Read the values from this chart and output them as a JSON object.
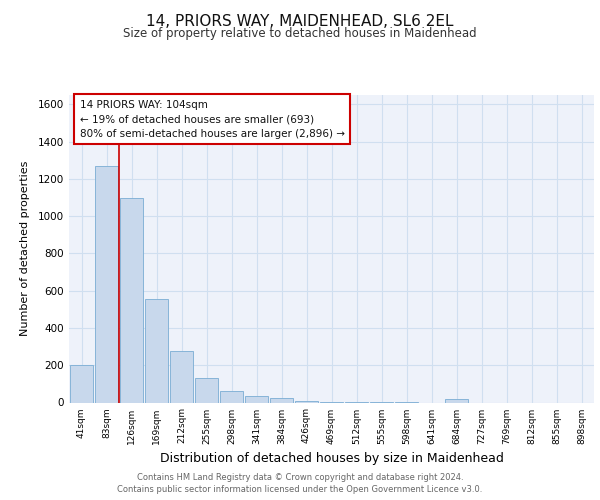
{
  "title": "14, PRIORS WAY, MAIDENHEAD, SL6 2EL",
  "subtitle": "Size of property relative to detached houses in Maidenhead",
  "xlabel": "Distribution of detached houses by size in Maidenhead",
  "ylabel": "Number of detached properties",
  "footnote1": "Contains HM Land Registry data © Crown copyright and database right 2024.",
  "footnote2": "Contains public sector information licensed under the Open Government Licence v3.0.",
  "annotation_line1": "14 PRIORS WAY: 104sqm",
  "annotation_line2": "← 19% of detached houses are smaller (693)",
  "annotation_line3": "80% of semi-detached houses are larger (2,896) →",
  "bar_color": "#c8d8ec",
  "bar_edge_color": "#7aadd4",
  "grid_color": "#d0dff0",
  "bg_color": "#eef2fa",
  "red_line_color": "#cc0000",
  "annotation_box_color": "#cc0000",
  "categories": [
    "41sqm",
    "83sqm",
    "126sqm",
    "169sqm",
    "212sqm",
    "255sqm",
    "298sqm",
    "341sqm",
    "384sqm",
    "426sqm",
    "469sqm",
    "512sqm",
    "555sqm",
    "598sqm",
    "641sqm",
    "684sqm",
    "727sqm",
    "769sqm",
    "812sqm",
    "855sqm",
    "898sqm"
  ],
  "values": [
    200,
    1270,
    1100,
    555,
    275,
    130,
    62,
    35,
    22,
    8,
    5,
    5,
    5,
    2,
    0,
    20,
    0,
    0,
    0,
    0,
    0
  ],
  "red_line_x": 1.49,
  "ylim": [
    0,
    1650
  ],
  "yticks": [
    0,
    200,
    400,
    600,
    800,
    1000,
    1200,
    1400,
    1600
  ]
}
